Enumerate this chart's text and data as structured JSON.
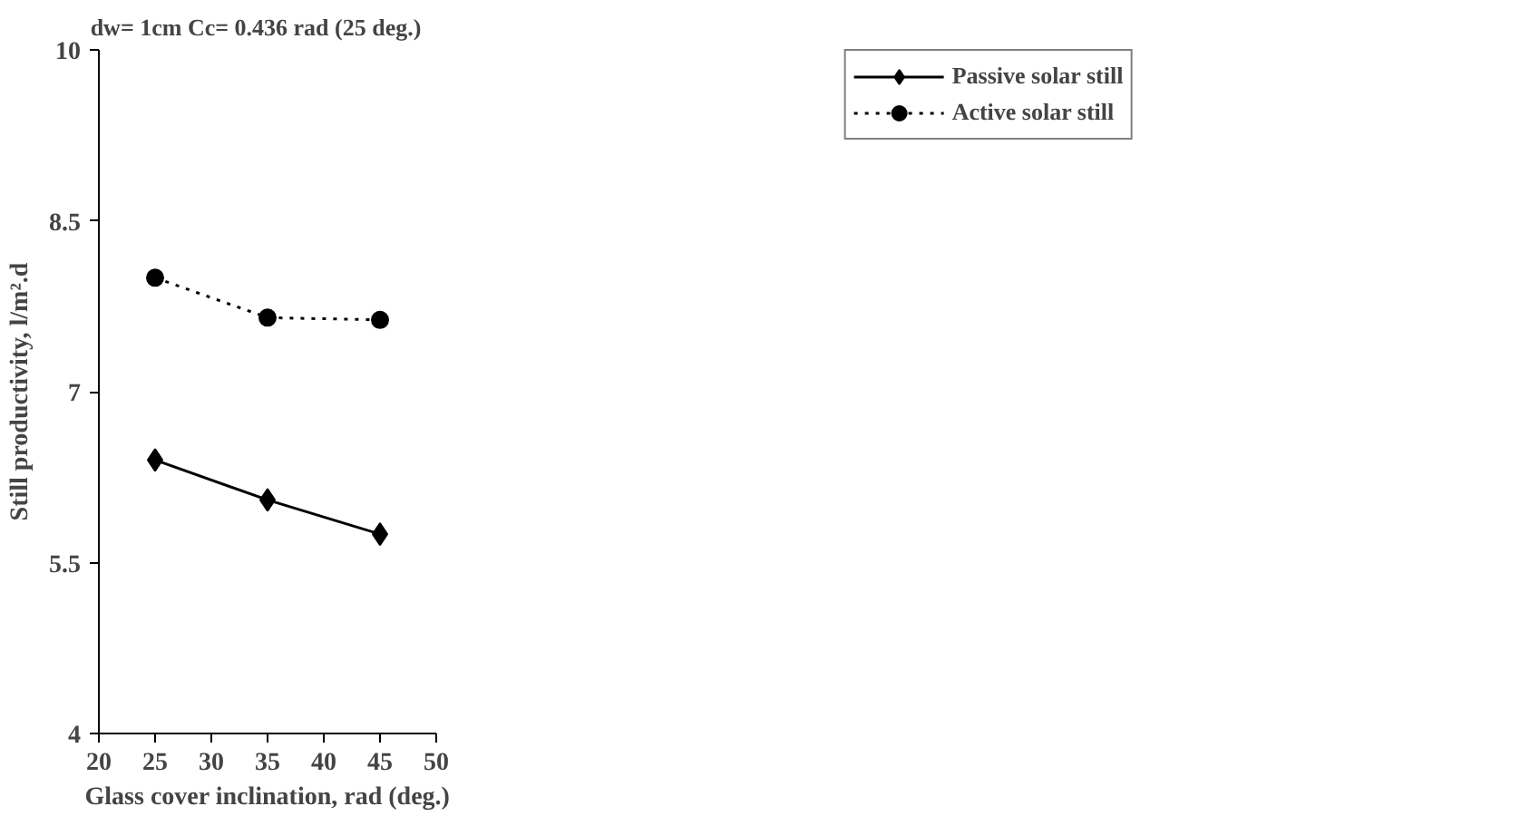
{
  "chart_data": {
    "type": "line",
    "title": "dw= 1cm     Cc= 0.436 rad (25 deg.)",
    "xlabel": "Glass cover inclination, rad (deg.)",
    "ylabel": "Still productivity, l/m².d",
    "x": [
      25,
      35,
      45
    ],
    "series": [
      {
        "name": "Passive solar still",
        "color": "#000000",
        "values": [
          6.4,
          6.05,
          5.75
        ],
        "marker": "diamond",
        "line_style": "solid"
      },
      {
        "name": "Active solar still",
        "color": "#000000",
        "values": [
          8.0,
          7.65,
          7.63
        ],
        "marker": "circle",
        "line_style": "dotted"
      }
    ],
    "xlim": [
      20,
      50
    ],
    "xticks": [
      20,
      25,
      30,
      35,
      40,
      45,
      50
    ],
    "ylim": [
      4,
      10
    ],
    "yticks": [
      4,
      5.5,
      7,
      8.5,
      10
    ],
    "grid": false,
    "legend": "top right"
  }
}
